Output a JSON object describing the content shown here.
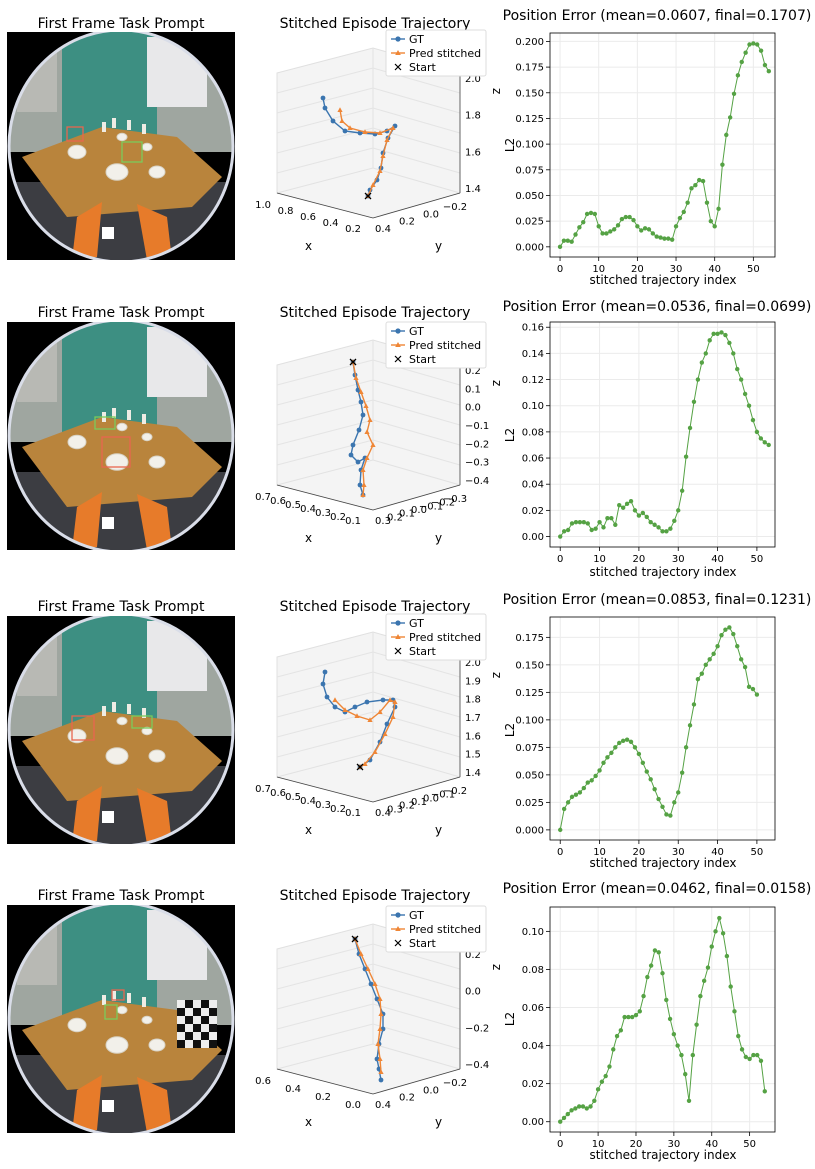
{
  "panel_titles": {
    "camera": "First Frame Task Prompt",
    "trajectory": "Stitched Episode Trajectory"
  },
  "rows": [
    {
      "error_title": "Position Error (mean=0.0607, final=0.1707)",
      "legend": [
        "GT",
        "Pred stitched",
        "Start"
      ],
      "traj_axes": {
        "x_ticks": [
          "1.0",
          "0.8",
          "0.6",
          "0.4",
          "0.2"
        ],
        "y_ticks": [
          "−0.2",
          "0.0",
          "0.2",
          "0.4"
        ],
        "z_ticks": [
          "1.4",
          "1.6",
          "1.8",
          "2.0"
        ],
        "x_label": "x",
        "y_label": "y",
        "z_label": "z"
      }
    },
    {
      "error_title": "Position Error (mean=0.0536, final=0.0699)",
      "legend": [
        "GT",
        "Pred stitched",
        "Start"
      ],
      "traj_axes": {
        "x_ticks": [
          "0.7",
          "0.6",
          "0.5",
          "0.4",
          "0.3",
          "0.2",
          "0.1"
        ],
        "y_ticks": [
          "−0.3",
          "−0.2",
          "−0.1",
          "0.0",
          "0.1",
          "0.2",
          "0.3"
        ],
        "z_ticks": [
          "−0.4",
          "−0.3",
          "−0.2",
          "−0.1",
          "0.0",
          "0.1",
          "0.2"
        ],
        "x_label": "x",
        "y_label": "y",
        "z_label": "z"
      }
    },
    {
      "error_title": "Position Error (mean=0.0853, final=0.1231)",
      "legend": [
        "GT",
        "Pred stitched",
        "Start"
      ],
      "traj_axes": {
        "x_ticks": [
          "0.7",
          "0.6",
          "0.5",
          "0.4",
          "0.3",
          "0.2",
          "0.1"
        ],
        "y_ticks": [
          "−0.2",
          "−0.1",
          "0.0",
          "0.1",
          "0.2",
          "0.3",
          "0.4"
        ],
        "z_ticks": [
          "1.4",
          "1.5",
          "1.6",
          "1.7",
          "1.8",
          "1.9",
          "2.0"
        ],
        "x_label": "x",
        "y_label": "y",
        "z_label": "z"
      }
    },
    {
      "error_title": "Position Error (mean=0.0462, final=0.0158)",
      "legend": [
        "GT",
        "Pred stitched",
        "Start"
      ],
      "traj_axes": {
        "x_ticks": [
          "0.6",
          "0.4",
          "0.2",
          "0.0"
        ],
        "y_ticks": [
          "−0.2",
          "0.0",
          "0.2",
          "0.4"
        ],
        "z_ticks": [
          "−0.4",
          "−0.2",
          "0.0",
          "0.2"
        ],
        "x_label": "x",
        "y_label": "y",
        "z_label": "z"
      }
    }
  ],
  "colors": {
    "gt": "#3b75af",
    "pred": "#ef8636",
    "error": "#55a244"
  },
  "chart_data": [
    {
      "type": "line",
      "title": "Position Error (mean=0.0607, final=0.1707)",
      "xlabel": "stitched trajectory index",
      "ylabel": "L2",
      "xlim": [
        -2.6,
        55.6
      ],
      "ylim": [
        -0.0099,
        0.2082
      ],
      "x_ticks": [
        0,
        10,
        20,
        30,
        40,
        50
      ],
      "y_ticks": [
        "0.000",
        "0.025",
        "0.050",
        "0.075",
        "0.100",
        "0.125",
        "0.150",
        "0.175",
        "0.200"
      ],
      "grid": true,
      "series": [
        {
          "values": [
            0.0,
            0.006,
            0.006,
            0.005,
            0.012,
            0.019,
            0.024,
            0.032,
            0.033,
            0.032,
            0.02,
            0.013,
            0.013,
            0.015,
            0.017,
            0.021,
            0.027,
            0.029,
            0.029,
            0.026,
            0.02,
            0.016,
            0.018,
            0.017,
            0.013,
            0.01,
            0.009,
            0.008,
            0.008,
            0.007,
            0.02,
            0.028,
            0.034,
            0.043,
            0.057,
            0.06,
            0.065,
            0.064,
            0.043,
            0.025,
            0.02,
            0.037,
            0.08,
            0.109,
            0.126,
            0.149,
            0.167,
            0.18,
            0.189,
            0.197,
            0.198,
            0.197,
            0.191,
            0.177,
            0.171
          ]
        }
      ]
    },
    {
      "type": "line",
      "title": "Position Error (mean=0.0536, final=0.0699)",
      "xlabel": "stitched trajectory index",
      "ylabel": "L2",
      "xlim": [
        -2.6,
        54.6
      ],
      "ylim": [
        -0.008,
        0.164
      ],
      "x_ticks": [
        0,
        10,
        20,
        30,
        40,
        50
      ],
      "y_ticks": [
        "0.00",
        "0.02",
        "0.04",
        "0.06",
        "0.08",
        "0.10",
        "0.12",
        "0.14",
        "0.16"
      ],
      "grid": true,
      "series": [
        {
          "values": [
            0.0,
            0.004,
            0.005,
            0.01,
            0.011,
            0.011,
            0.011,
            0.01,
            0.005,
            0.006,
            0.011,
            0.007,
            0.014,
            0.014,
            0.009,
            0.024,
            0.022,
            0.025,
            0.027,
            0.02,
            0.016,
            0.018,
            0.015,
            0.011,
            0.009,
            0.007,
            0.004,
            0.004,
            0.006,
            0.012,
            0.02,
            0.035,
            0.061,
            0.083,
            0.103,
            0.12,
            0.133,
            0.14,
            0.15,
            0.155,
            0.155,
            0.156,
            0.154,
            0.148,
            0.14,
            0.128,
            0.12,
            0.109,
            0.1,
            0.089,
            0.08,
            0.075,
            0.072,
            0.07
          ]
        }
      ]
    },
    {
      "type": "line",
      "title": "Position Error (mean=0.0853, final=0.1231)",
      "xlabel": "stitched trajectory index",
      "ylabel": "L2",
      "xlim": [
        -2.6,
        54.6
      ],
      "ylim": [
        -0.0092,
        0.1935
      ],
      "x_ticks": [
        0,
        10,
        20,
        30,
        40,
        50
      ],
      "y_ticks": [
        "0.000",
        "0.025",
        "0.050",
        "0.075",
        "0.100",
        "0.125",
        "0.150",
        "0.175"
      ],
      "grid": true,
      "series": [
        {
          "values": [
            0.0,
            0.019,
            0.025,
            0.03,
            0.032,
            0.034,
            0.038,
            0.043,
            0.045,
            0.049,
            0.054,
            0.061,
            0.066,
            0.07,
            0.075,
            0.079,
            0.081,
            0.082,
            0.08,
            0.075,
            0.069,
            0.061,
            0.053,
            0.046,
            0.037,
            0.028,
            0.021,
            0.014,
            0.013,
            0.025,
            0.034,
            0.052,
            0.075,
            0.095,
            0.114,
            0.137,
            0.142,
            0.15,
            0.155,
            0.16,
            0.167,
            0.177,
            0.182,
            0.184,
            0.178,
            0.167,
            0.155,
            0.148,
            0.13,
            0.128,
            0.123
          ]
        }
      ]
    },
    {
      "type": "line",
      "title": "Position Error (mean=0.0462, final=0.0158)",
      "xlabel": "stitched trajectory index",
      "ylabel": "L2",
      "xlim": [
        -2.7,
        56.7
      ],
      "ylim": [
        -0.0054,
        0.1128
      ],
      "x_ticks": [
        0,
        10,
        20,
        30,
        40,
        50
      ],
      "y_ticks": [
        "0.00",
        "0.02",
        "0.04",
        "0.06",
        "0.08",
        "0.10"
      ],
      "grid": true,
      "series": [
        {
          "values": [
            0.0,
            0.002,
            0.004,
            0.006,
            0.007,
            0.008,
            0.008,
            0.007,
            0.008,
            0.011,
            0.017,
            0.021,
            0.024,
            0.029,
            0.038,
            0.045,
            0.048,
            0.055,
            0.055,
            0.055,
            0.056,
            0.058,
            0.066,
            0.076,
            0.082,
            0.09,
            0.089,
            0.078,
            0.064,
            0.054,
            0.046,
            0.04,
            0.035,
            0.025,
            0.011,
            0.035,
            0.051,
            0.066,
            0.074,
            0.081,
            0.092,
            0.1,
            0.107,
            0.099,
            0.087,
            0.071,
            0.058,
            0.045,
            0.038,
            0.034,
            0.033,
            0.035,
            0.035,
            0.032,
            0.016
          ]
        }
      ]
    }
  ]
}
